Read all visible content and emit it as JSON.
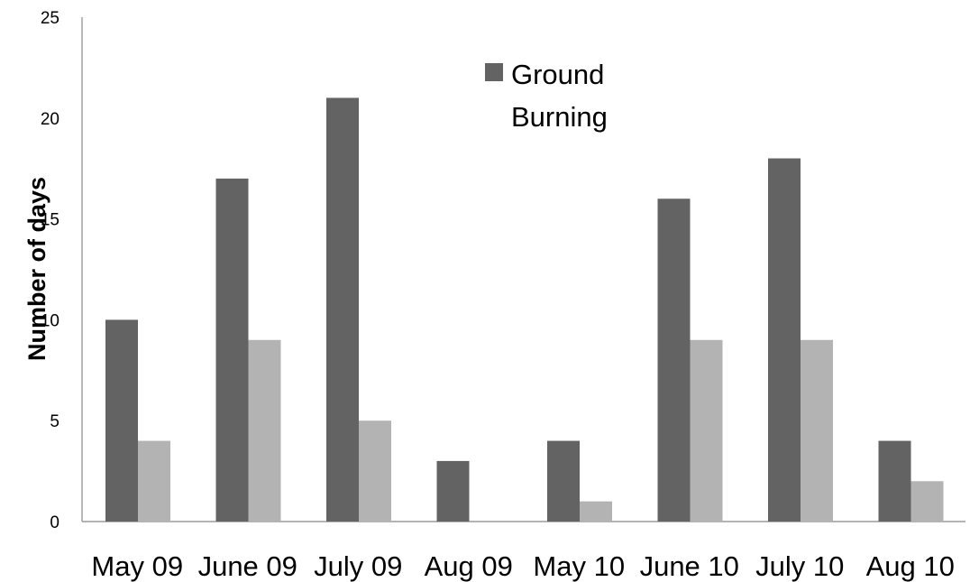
{
  "chart_data": {
    "type": "bar",
    "title": "",
    "xlabel": "",
    "ylabel": "Number of days",
    "ylim": [
      0,
      25
    ],
    "yticks": [
      0,
      5,
      10,
      15,
      20,
      25
    ],
    "grid": false,
    "legend_placement": "top-center",
    "categories": [
      "May 09",
      "June 09",
      "July 09",
      "Aug 09",
      "May 10",
      "June 10",
      "July 10",
      "Aug 10"
    ],
    "series": [
      {
        "name": "Ground",
        "color": "#636363",
        "values": [
          10,
          17,
          21,
          3,
          4,
          16,
          18,
          4
        ]
      },
      {
        "name": "Burning",
        "color": "#b3b3b3",
        "values": [
          4,
          9,
          5,
          0,
          1,
          9,
          9,
          2
        ]
      }
    ]
  }
}
